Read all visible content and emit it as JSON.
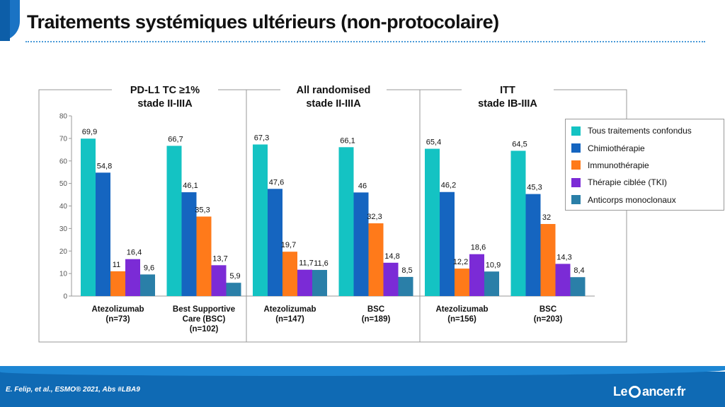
{
  "title": "Traitements systémiques ultérieurs (non-protocolaire)",
  "citation": "E. Felip, et al.,  ESMO® 2021, Abs #LBA9",
  "logo": {
    "text_before": "Le",
    "text_after": "ancer.fr"
  },
  "chart_data": {
    "type": "bar",
    "ylim": [
      0,
      80
    ],
    "yticks": [
      0,
      10,
      20,
      30,
      40,
      50,
      60,
      70,
      80
    ],
    "grid": false,
    "legend_position": "right",
    "groups": [
      {
        "title_line1": "PD-L1 TC ≥1%",
        "title_line2": "stade II-IIIA"
      },
      {
        "title_line1": "All randomised",
        "title_line2": "stade II-IIIA"
      },
      {
        "title_line1": "ITT",
        "title_line2": "stade IB-IIIA"
      }
    ],
    "categories": [
      {
        "label_lines": [
          "Atezolizumab",
          "(n=73)"
        ],
        "group": 0
      },
      {
        "label_lines": [
          "Best Supportive",
          "Care (BSC)",
          "(n=102)"
        ],
        "group": 0
      },
      {
        "label_lines": [
          "Atezolizumab",
          "(n=147)"
        ],
        "group": 1
      },
      {
        "label_lines": [
          "BSC",
          "(n=189)"
        ],
        "group": 1
      },
      {
        "label_lines": [
          "Atezolizumab",
          "(n=156)"
        ],
        "group": 2
      },
      {
        "label_lines": [
          "BSC",
          "(n=203)"
        ],
        "group": 2
      }
    ],
    "series": [
      {
        "name": "Tous traitements confondus",
        "color": "#14c3c3",
        "values": [
          69.9,
          66.7,
          67.3,
          66.1,
          65.4,
          64.5
        ],
        "labels": [
          "69,9",
          "66,7",
          "67,3",
          "66,1",
          "65,4",
          "64,5"
        ]
      },
      {
        "name": "Chimiothérapie",
        "color": "#1565c0",
        "values": [
          54.8,
          46.1,
          47.6,
          46,
          46.2,
          45.3
        ],
        "labels": [
          "54,8",
          "46,1",
          "47,6",
          "46",
          "46,2",
          "45,3"
        ]
      },
      {
        "name": "Immunothérapie",
        "color": "#ff7a1a",
        "values": [
          11,
          35.3,
          19.7,
          32.3,
          12.2,
          32
        ],
        "labels": [
          "11",
          "35,3",
          "19,7",
          "32,3",
          "12,2",
          "32"
        ]
      },
      {
        "name": "Thérapie ciblée (TKI)",
        "color": "#7b2bd6",
        "values": [
          16.4,
          13.7,
          11.7,
          14.8,
          18.6,
          14.3
        ],
        "labels": [
          "16,4",
          "13,7",
          "11,7",
          "14,8",
          "18,6",
          "14,3"
        ]
      },
      {
        "name": "Anticorps monoclonaux",
        "color": "#2a7fa8",
        "values": [
          9.6,
          5.9,
          11.6,
          8.5,
          10.9,
          8.4
        ],
        "labels": [
          "9,6",
          "5,9",
          "11,6",
          "8,5",
          "10,9",
          "8,4"
        ]
      }
    ]
  }
}
